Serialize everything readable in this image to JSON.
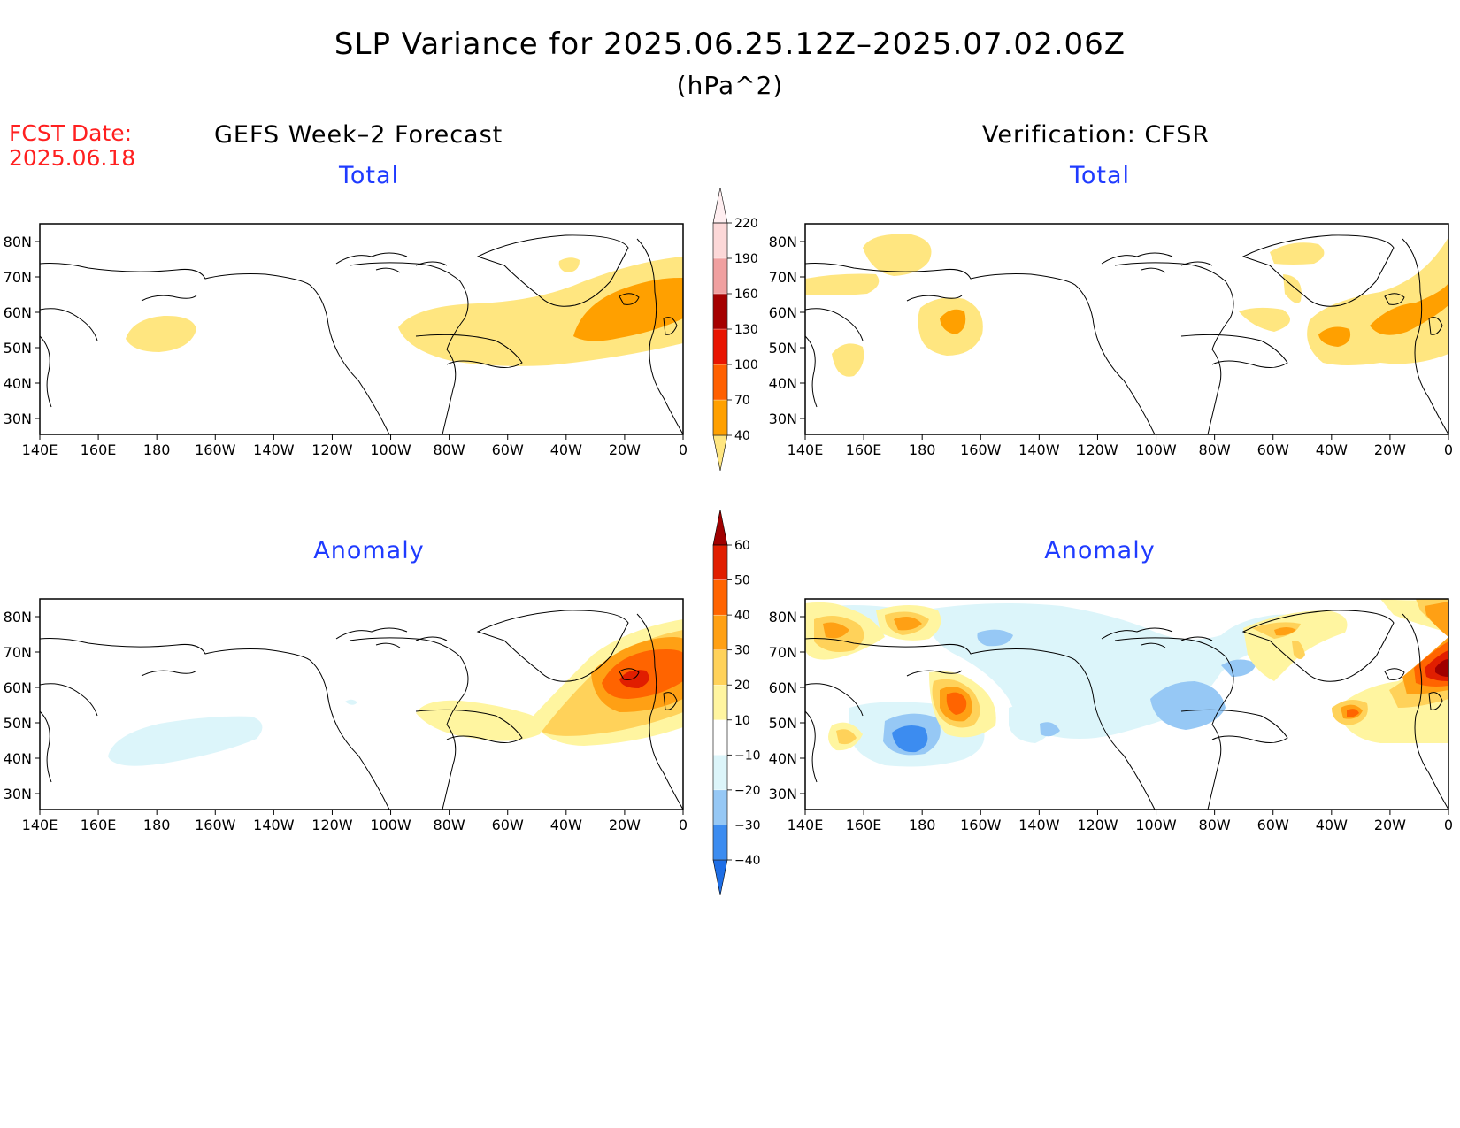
{
  "title": "SLP Variance for 2025.06.25.12Z–2025.07.02.06Z",
  "units": "(hPa^2)",
  "fcst_date_label": "FCST Date:",
  "fcst_date": "2025.06.18",
  "left_column_title": "GEFS Week–2 Forecast",
  "right_column_title": "Verification: CFSR",
  "panels": {
    "top_left": "Total",
    "top_right": "Total",
    "bottom_left": "Anomaly",
    "bottom_right": "Anomaly"
  },
  "lon_labels": [
    "140E",
    "160E",
    "180",
    "160W",
    "140W",
    "120W",
    "100W",
    "80W",
    "60W",
    "40W",
    "20W",
    "0"
  ],
  "lat_labels": [
    "80N",
    "70N",
    "60N",
    "50N",
    "40N",
    "30N"
  ],
  "total_colorbar": {
    "levels": [
      "40",
      "70",
      "100",
      "130",
      "160",
      "190",
      "220"
    ],
    "colors": [
      "#ffe680",
      "#ffa000",
      "#ff6000",
      "#e81400",
      "#a50000",
      "#f0a0a0",
      "#fcd8d8",
      "#ffeef0"
    ]
  },
  "anomaly_colorbar": {
    "levels": [
      "−40",
      "−30",
      "−20",
      "−10",
      "10",
      "20",
      "30",
      "40",
      "50",
      "60"
    ],
    "colors": [
      "#1e6ee6",
      "#3c8cf0",
      "#96c8f5",
      "#dcf5fa",
      "#ffffff",
      "#fff5a0",
      "#ffd25a",
      "#ffa014",
      "#ff6400",
      "#e11e00",
      "#a00000"
    ]
  }
}
